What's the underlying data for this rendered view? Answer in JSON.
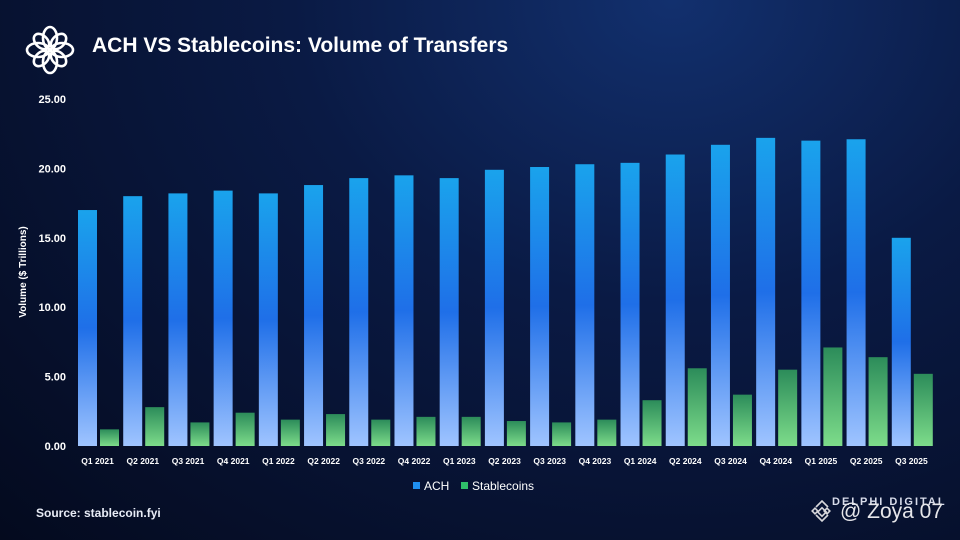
{
  "header": {
    "title": "ACH VS Stablecoins: Volume of Transfers",
    "logo_icon": "delphi-flower-icon"
  },
  "footer": {
    "source": "Source: stablecoin.fyi",
    "brand": "DELPHI DIGITAL",
    "watermark": "@ Zoya 07",
    "watermark_icon": "binance-logo-icon"
  },
  "colors": {
    "ach_top": "#1aa3ec",
    "ach_mid": "#1f6fe8",
    "ach_bottom": "#9fc4ff",
    "stable_top": "#2c8c5a",
    "stable_bottom": "#7ddc8a"
  },
  "chart_data": {
    "type": "bar",
    "ylabel": "Volume ($ Trillions)",
    "ylim": [
      0,
      25
    ],
    "yticks": [
      "0.00",
      "5.00",
      "10.00",
      "15.00",
      "20.00",
      "25.00"
    ],
    "grid": false,
    "legend_position": "bottom",
    "categories": [
      "Q1 2021",
      "Q2 2021",
      "Q3 2021",
      "Q4 2021",
      "Q1 2022",
      "Q2 2022",
      "Q3 2022",
      "Q4 2022",
      "Q1 2023",
      "Q2 2023",
      "Q3 2023",
      "Q4 2023",
      "Q1 2024",
      "Q2 2024",
      "Q3 2024",
      "Q4 2024",
      "Q1 2025",
      "Q2 2025",
      "Q3 2025"
    ],
    "series": [
      {
        "name": "ACH",
        "values": [
          17.0,
          18.0,
          18.2,
          18.4,
          18.2,
          18.8,
          19.3,
          19.5,
          19.3,
          19.9,
          20.1,
          20.3,
          20.4,
          21.0,
          21.7,
          22.2,
          22.0,
          22.1,
          15.0
        ]
      },
      {
        "name": "Stablecoins",
        "values": [
          1.2,
          2.8,
          1.7,
          2.4,
          1.9,
          2.3,
          1.9,
          2.1,
          2.1,
          1.8,
          1.7,
          1.9,
          3.3,
          5.6,
          3.7,
          5.5,
          7.1,
          6.4,
          5.2
        ]
      }
    ]
  }
}
